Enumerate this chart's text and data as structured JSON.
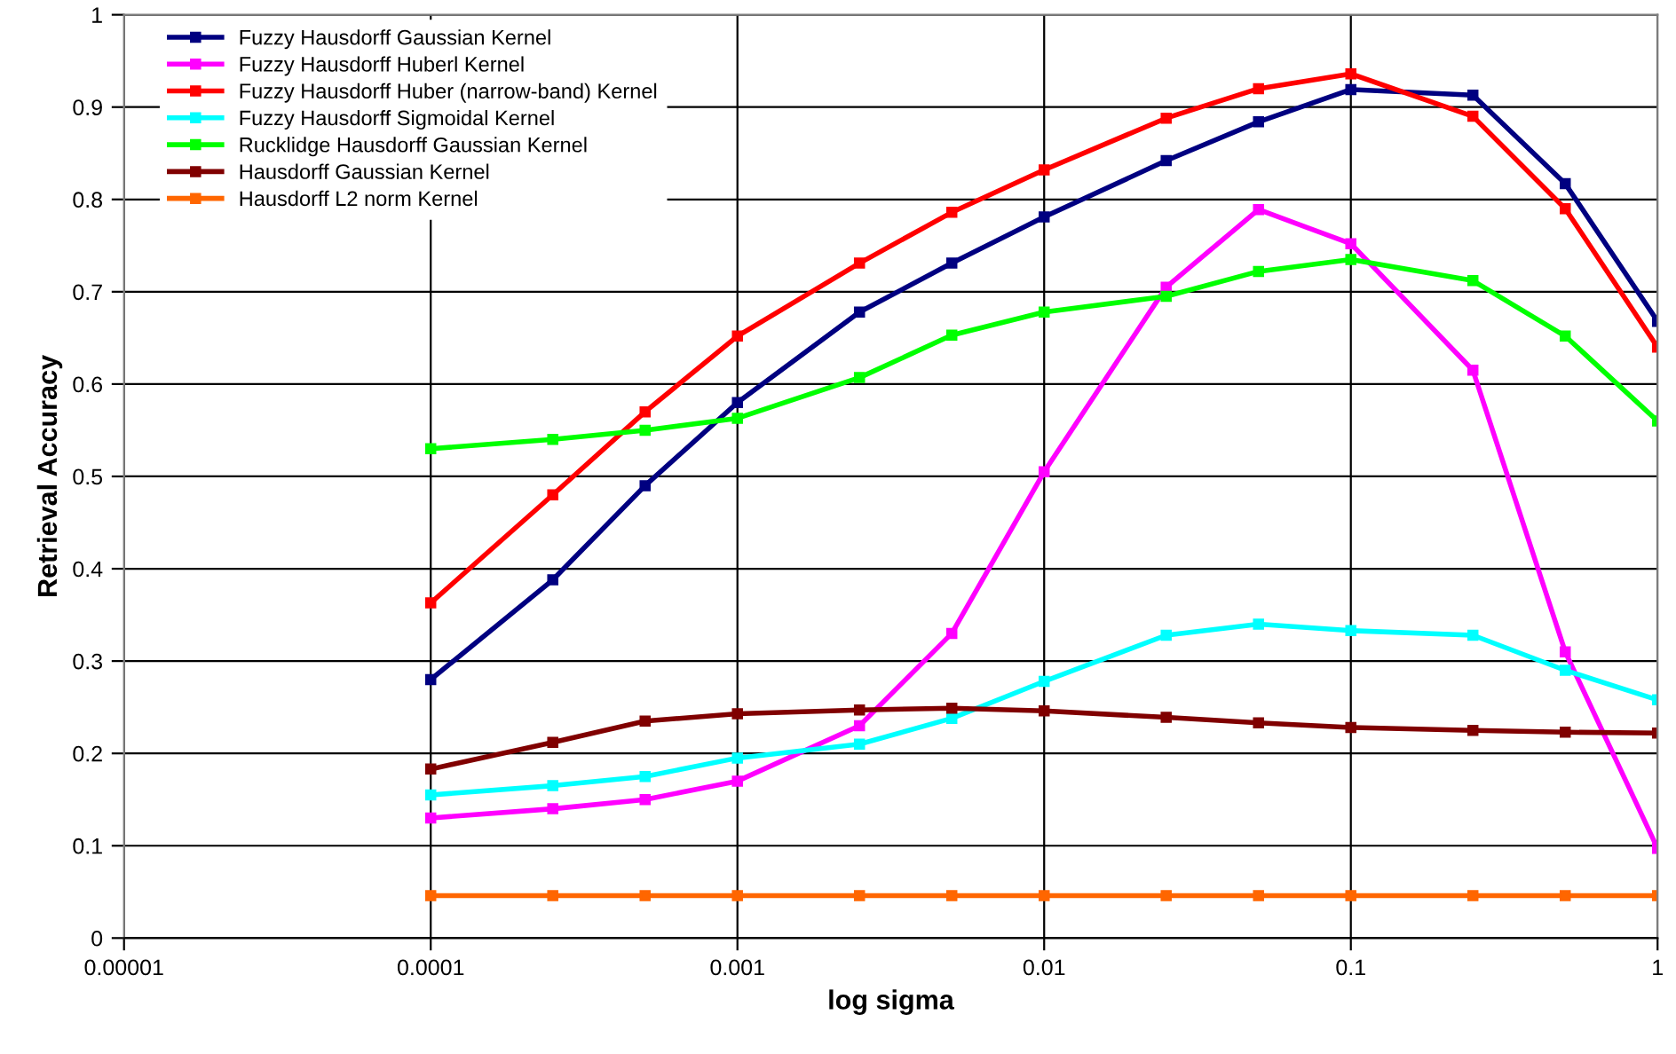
{
  "chart_data": {
    "type": "line",
    "xlabel": "log sigma",
    "ylabel": "Retrieval Accuracy",
    "log": "x",
    "x": [
      0.0001,
      0.00025,
      0.0005,
      0.001,
      0.0025,
      0.005,
      0.01,
      0.025,
      0.05,
      0.1,
      0.25,
      0.5,
      1
    ],
    "series": [
      {
        "name": "Fuzzy Hausdorff Gaussian Kernel",
        "color": "#000080",
        "values": [
          0.28,
          0.388,
          0.49,
          0.58,
          0.678,
          0.731,
          0.781,
          0.842,
          0.884,
          0.919,
          0.913,
          0.817,
          0.668
        ]
      },
      {
        "name": "Fuzzy Hausdorff Huberl Kernel",
        "color": "#ff00ff",
        "values": [
          0.13,
          0.14,
          0.15,
          0.17,
          0.23,
          0.33,
          0.505,
          0.705,
          0.789,
          0.752,
          0.615,
          0.31,
          0.097
        ]
      },
      {
        "name": "Fuzzy Hausdorff Huber (narrow-band) Kernel",
        "color": "#ff0000",
        "values": [
          0.363,
          0.48,
          0.57,
          0.652,
          0.731,
          0.786,
          0.832,
          0.888,
          0.92,
          0.936,
          0.89,
          0.79,
          0.64
        ]
      },
      {
        "name": "Fuzzy Hausdorff Sigmoidal Kernel",
        "color": "#00ffff",
        "values": [
          0.155,
          0.165,
          0.175,
          0.195,
          0.21,
          0.238,
          0.278,
          0.328,
          0.34,
          0.333,
          0.328,
          0.29,
          0.258
        ]
      },
      {
        "name": "Rucklidge Hausdorff Gaussian Kernel",
        "color": "#00ff00",
        "values": [
          0.53,
          0.54,
          0.55,
          0.563,
          0.607,
          0.653,
          0.678,
          0.695,
          0.722,
          0.735,
          0.712,
          0.652,
          0.56
        ]
      },
      {
        "name": "Hausdorff Gaussian Kernel",
        "color": "#800000",
        "values": [
          0.183,
          0.212,
          0.235,
          0.243,
          0.247,
          0.249,
          0.246,
          0.239,
          0.233,
          0.228,
          0.225,
          0.223,
          0.222
        ]
      },
      {
        "name": "Hausdorff L2 norm Kernel",
        "color": "#ff6600",
        "values": [
          0.046,
          0.046,
          0.046,
          0.046,
          0.046,
          0.046,
          0.046,
          0.046,
          0.046,
          0.046,
          0.046,
          0.046,
          0.046
        ]
      }
    ],
    "xlim": [
      1e-05,
      1
    ],
    "xticks": [
      {
        "value": 1e-05,
        "label": "0.00001"
      },
      {
        "value": 0.0001,
        "label": "0.0001"
      },
      {
        "value": 0.001,
        "label": "0.001"
      },
      {
        "value": 0.01,
        "label": "0.01"
      },
      {
        "value": 0.1,
        "label": "0.1"
      },
      1
    ],
    "ylim": [
      0,
      1
    ],
    "yticks": [
      0,
      0.1,
      0.2,
      0.3,
      0.4,
      0.5,
      0.6,
      0.7,
      0.8,
      0.9,
      1
    ],
    "grid": true,
    "legend": "top left",
    "marker": "square",
    "line_style": "solid"
  }
}
